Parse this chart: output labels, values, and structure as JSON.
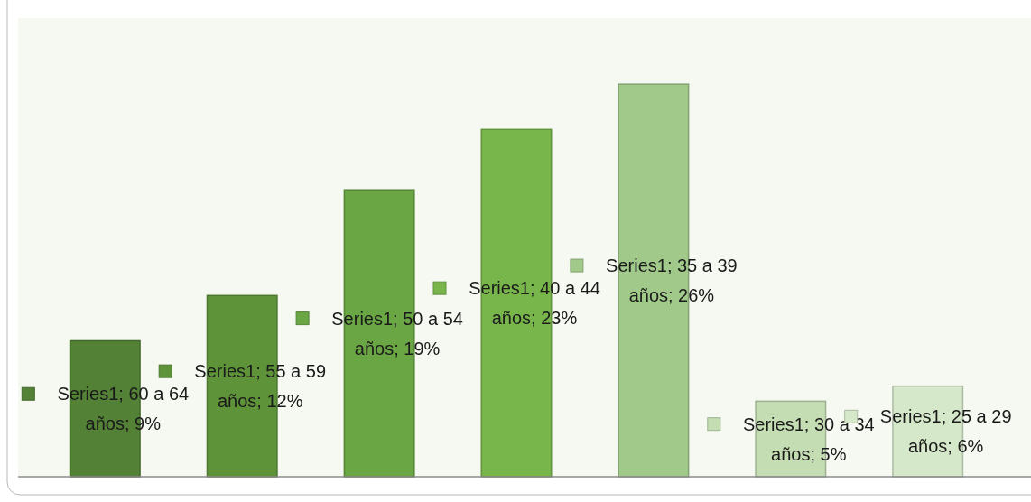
{
  "chart_data": {
    "type": "bar",
    "categories": [
      null,
      null,
      null,
      null,
      null,
      null,
      null
    ],
    "values": [
      9,
      12,
      19,
      23,
      26,
      5,
      6
    ],
    "colors": [
      "#538135",
      "#5e9339",
      "#6aa644",
      "#78b64c",
      "#a1c98a",
      "#c4ddb3",
      "#d6e8ca"
    ],
    "value_labels": [
      "Series1; 60 a 64 años; 9%",
      "Series1; 55 a 59 años; 12%",
      "Series1; 50 a 54 años; 19%",
      "Series1; 40 a 44 años; 23%",
      "Series1; 35 a 39 años; 26%",
      "Series1; 30 a 34 años; 5%",
      "Series1; 25 a 29 años; 6%"
    ]
  }
}
